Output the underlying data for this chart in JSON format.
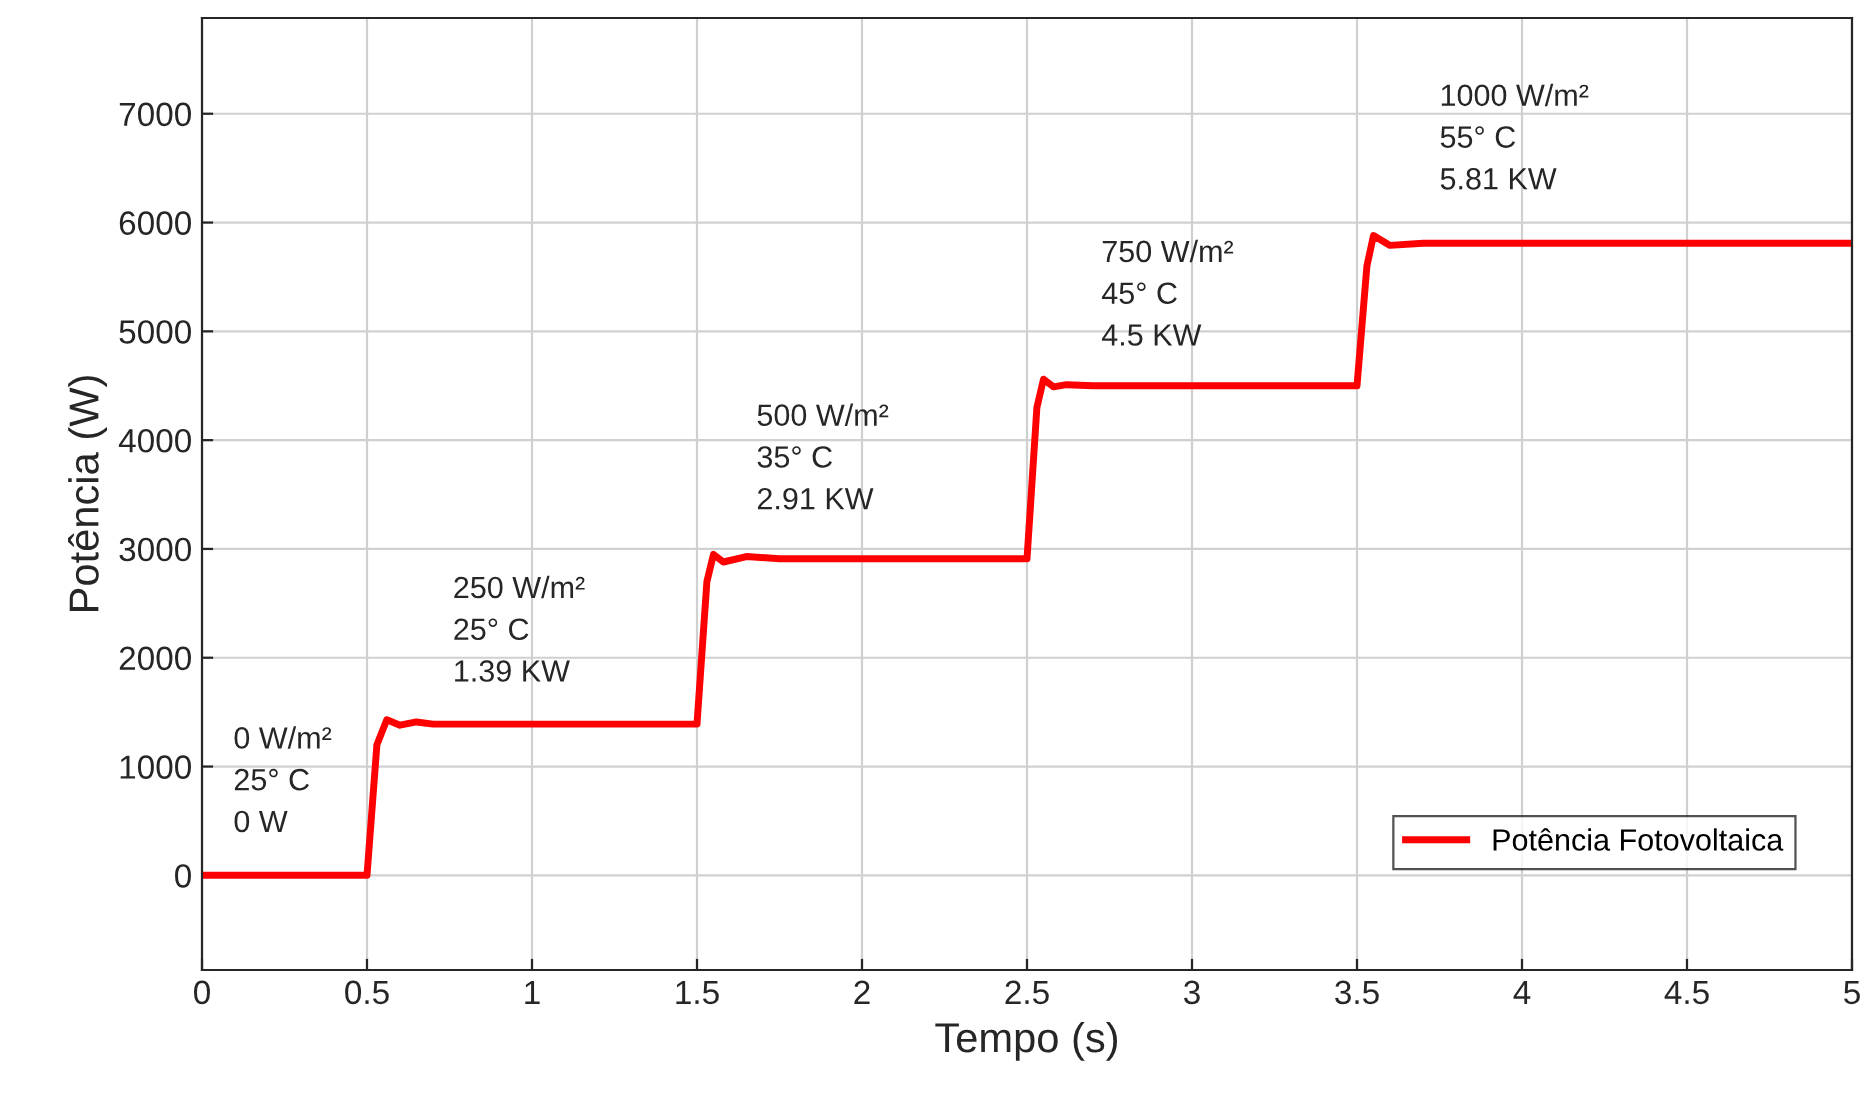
{
  "chart_data": {
    "type": "line",
    "xlabel": "Tempo (s)",
    "ylabel": "Potência (W)",
    "xlim": [
      0,
      5
    ],
    "xticks": [
      0,
      0.5,
      1,
      1.5,
      2,
      2.5,
      3,
      3.5,
      4,
      4.5,
      5
    ],
    "ylim": [
      -870,
      7880
    ],
    "yticks": [
      0,
      1000,
      2000,
      3000,
      4000,
      5000,
      6000,
      7000
    ],
    "grid": true,
    "legend": "bottom right",
    "series": [
      {
        "name": "Potência Fotovoltaica",
        "color": "#ff0000",
        "x": [
          0,
          0.5,
          0.53,
          0.56,
          0.6,
          0.65,
          0.7,
          1.0,
          1.5,
          1.53,
          1.55,
          1.58,
          1.65,
          1.75,
          2.0,
          2.5,
          2.53,
          2.55,
          2.58,
          2.62,
          2.7,
          3.0,
          3.5,
          3.53,
          3.55,
          3.6,
          3.7,
          4.0,
          5.0
        ],
        "values": [
          0,
          0,
          1200,
          1430,
          1380,
          1410,
          1390,
          1390,
          1390,
          2700,
          2950,
          2880,
          2930,
          2910,
          2910,
          2910,
          4300,
          4560,
          4490,
          4510,
          4500,
          4500,
          4500,
          5600,
          5880,
          5790,
          5810,
          5810,
          5810
        ]
      }
    ],
    "annotations": [
      "0 W/m²\n25° C\n0 W",
      "250 W/m²\n25° C\n1.39 KW",
      "500 W/m²\n35° C\n2.91 KW",
      "750 W/m²\n45° C\n4.5 KW",
      "1000 W/m²\n55° C\n5.81 KW"
    ]
  }
}
